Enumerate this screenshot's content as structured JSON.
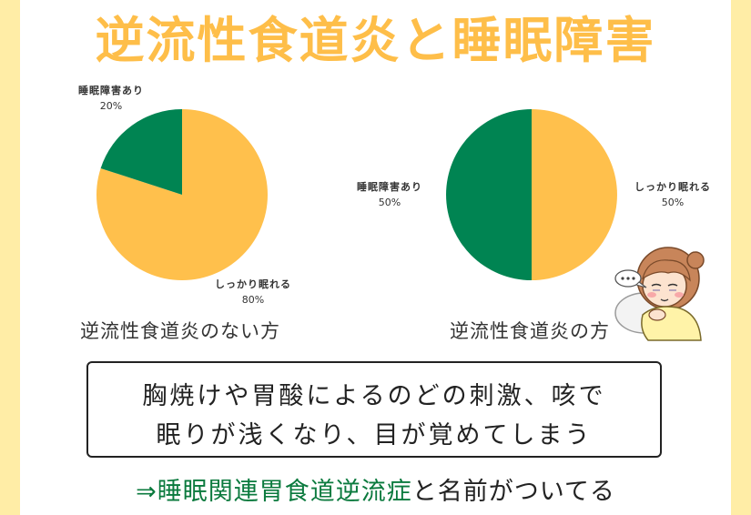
{
  "title": "逆流性食道炎と睡眠障害",
  "colors": {
    "title": "#FEBE49",
    "side_bar": "#FFEDA6",
    "orange": "#FFC04C",
    "green": "#008452",
    "conclusion_green": "#0B7A3E"
  },
  "chart_data": [
    {
      "type": "pie",
      "title": "逆流性食道炎のない方",
      "categories": [
        "睡眠障害あり",
        "しっかり眠れる"
      ],
      "values": [
        20,
        80
      ],
      "labels": [
        "20%",
        "80%"
      ],
      "colors": [
        "#008452",
        "#FFC04C"
      ]
    },
    {
      "type": "pie",
      "title": "逆流性食道炎の方",
      "categories": [
        "睡眠障害あり",
        "しっかり眠れる"
      ],
      "values": [
        50,
        50
      ],
      "labels": [
        "50%",
        "50%"
      ],
      "colors": [
        "#008452",
        "#FFC04C"
      ]
    }
  ],
  "note": {
    "line1": "胸焼けや胃酸によるのどの刺激、咳で",
    "line2": "眠りが浅くなり、目が覚めてしまう"
  },
  "conclusion": {
    "arrow": "⇒",
    "term": "睡眠関連胃食道逆流症",
    "rest": "と名前がついてる"
  },
  "illustration": {
    "icon": "sleepy-girl-icon"
  }
}
